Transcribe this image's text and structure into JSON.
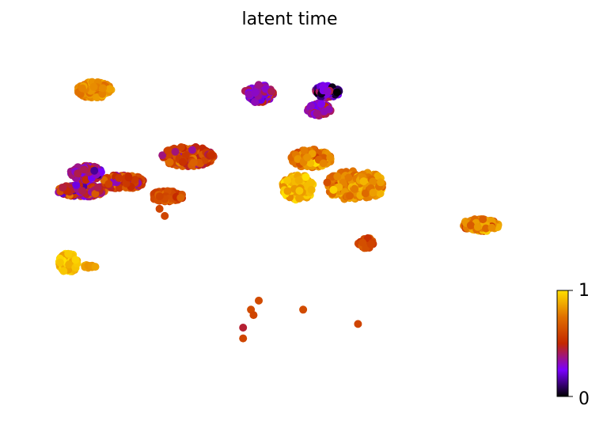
{
  "chart_data": {
    "type": "scatter",
    "title": "latent time",
    "xlabel": "",
    "ylabel": "",
    "axes_visible": false,
    "grid": false,
    "colormap": "gnuplot",
    "colormap_stops": [
      "#000000",
      "#7a00ff",
      "#c42800",
      "#e07000",
      "#ffe000"
    ],
    "colorbar": {
      "placement": "right",
      "min": 0,
      "max": 1,
      "ticks": [
        0,
        1
      ],
      "tick_labels": [
        "0",
        "1"
      ]
    },
    "x_range": [
      -10,
      10
    ],
    "y_range": [
      -10,
      10
    ],
    "clusters": [
      {
        "name": "top-left",
        "cx": -7.3,
        "cy": 7.2,
        "rx": 0.65,
        "ry": 0.45,
        "n": 160,
        "c_mean": 0.82,
        "c_spread": 0.06
      },
      {
        "name": "top-middle-purple",
        "cx": -1.0,
        "cy": 7.0,
        "rx": 0.55,
        "ry": 0.5,
        "n": 120,
        "c_mean": 0.32,
        "c_spread": 0.1
      },
      {
        "name": "top-middle-dark",
        "cx": 1.6,
        "cy": 7.1,
        "rx": 0.5,
        "ry": 0.35,
        "n": 70,
        "c_mean": 0.2,
        "c_spread": 0.12
      },
      {
        "name": "top-middle-lower",
        "cx": 1.3,
        "cy": 6.1,
        "rx": 0.45,
        "ry": 0.35,
        "n": 70,
        "c_mean": 0.35,
        "c_spread": 0.1
      },
      {
        "name": "left-complex-a",
        "cx": -7.8,
        "cy": 1.6,
        "rx": 0.9,
        "ry": 0.35,
        "n": 180,
        "c_mean": 0.45,
        "c_spread": 0.15
      },
      {
        "name": "left-complex-b",
        "cx": -6.2,
        "cy": 2.1,
        "rx": 0.8,
        "ry": 0.4,
        "n": 160,
        "c_mean": 0.55,
        "c_spread": 0.12
      },
      {
        "name": "left-complex-c",
        "cx": -7.6,
        "cy": 2.6,
        "rx": 0.6,
        "ry": 0.4,
        "n": 120,
        "c_mean": 0.35,
        "c_spread": 0.1
      },
      {
        "name": "left-complex-d",
        "cx": -4.5,
        "cy": 1.3,
        "rx": 0.6,
        "ry": 0.3,
        "n": 110,
        "c_mean": 0.62,
        "c_spread": 0.06
      },
      {
        "name": "left-complex-e",
        "cx": -3.7,
        "cy": 3.5,
        "rx": 1.0,
        "ry": 0.55,
        "n": 220,
        "c_mean": 0.58,
        "c_spread": 0.1
      },
      {
        "name": "right-cluster-a",
        "cx": 0.5,
        "cy": 1.8,
        "rx": 0.6,
        "ry": 0.7,
        "n": 150,
        "c_mean": 0.92,
        "c_spread": 0.07
      },
      {
        "name": "right-cluster-b",
        "cx": 1.0,
        "cy": 3.4,
        "rx": 0.8,
        "ry": 0.5,
        "n": 140,
        "c_mean": 0.8,
        "c_spread": 0.08
      },
      {
        "name": "right-cluster-c",
        "cx": 2.5,
        "cy": 1.9,
        "rx": 0.9,
        "ry": 0.8,
        "n": 160,
        "c_mean": 0.78,
        "c_spread": 0.08
      },
      {
        "name": "right-cluster-d",
        "cx": 3.2,
        "cy": 1.9,
        "rx": 0.6,
        "ry": 0.7,
        "n": 120,
        "c_mean": 0.82,
        "c_spread": 0.06
      },
      {
        "name": "small-right",
        "cx": 3.1,
        "cy": -1.3,
        "rx": 0.3,
        "ry": 0.3,
        "n": 40,
        "c_mean": 0.62,
        "c_spread": 0.04
      },
      {
        "name": "far-right",
        "cx": 7.5,
        "cy": -0.3,
        "rx": 0.7,
        "ry": 0.35,
        "n": 130,
        "c_mean": 0.78,
        "c_spread": 0.1
      },
      {
        "name": "bottom-left",
        "cx": -8.3,
        "cy": -2.4,
        "rx": 0.35,
        "ry": 0.55,
        "n": 100,
        "c_mean": 0.95,
        "c_spread": 0.05
      },
      {
        "name": "bottom-left-tail",
        "cx": -7.5,
        "cy": -2.6,
        "rx": 0.25,
        "ry": 0.08,
        "n": 12,
        "c_mean": 0.85,
        "c_spread": 0.03
      }
    ],
    "singletons": [
      {
        "x": -4.8,
        "y": 0.6,
        "c": 0.6
      },
      {
        "x": -4.6,
        "y": 0.2,
        "c": 0.6
      },
      {
        "x": -1.0,
        "y": -4.5,
        "c": 0.62
      },
      {
        "x": -1.3,
        "y": -5.0,
        "c": 0.62
      },
      {
        "x": -1.2,
        "y": -5.3,
        "c": 0.6
      },
      {
        "x": -1.6,
        "y": -6.0,
        "c": 0.45
      },
      {
        "x": -1.6,
        "y": -6.6,
        "c": 0.6
      },
      {
        "x": 0.7,
        "y": -5.0,
        "c": 0.62
      },
      {
        "x": 2.8,
        "y": -5.8,
        "c": 0.6
      }
    ]
  }
}
